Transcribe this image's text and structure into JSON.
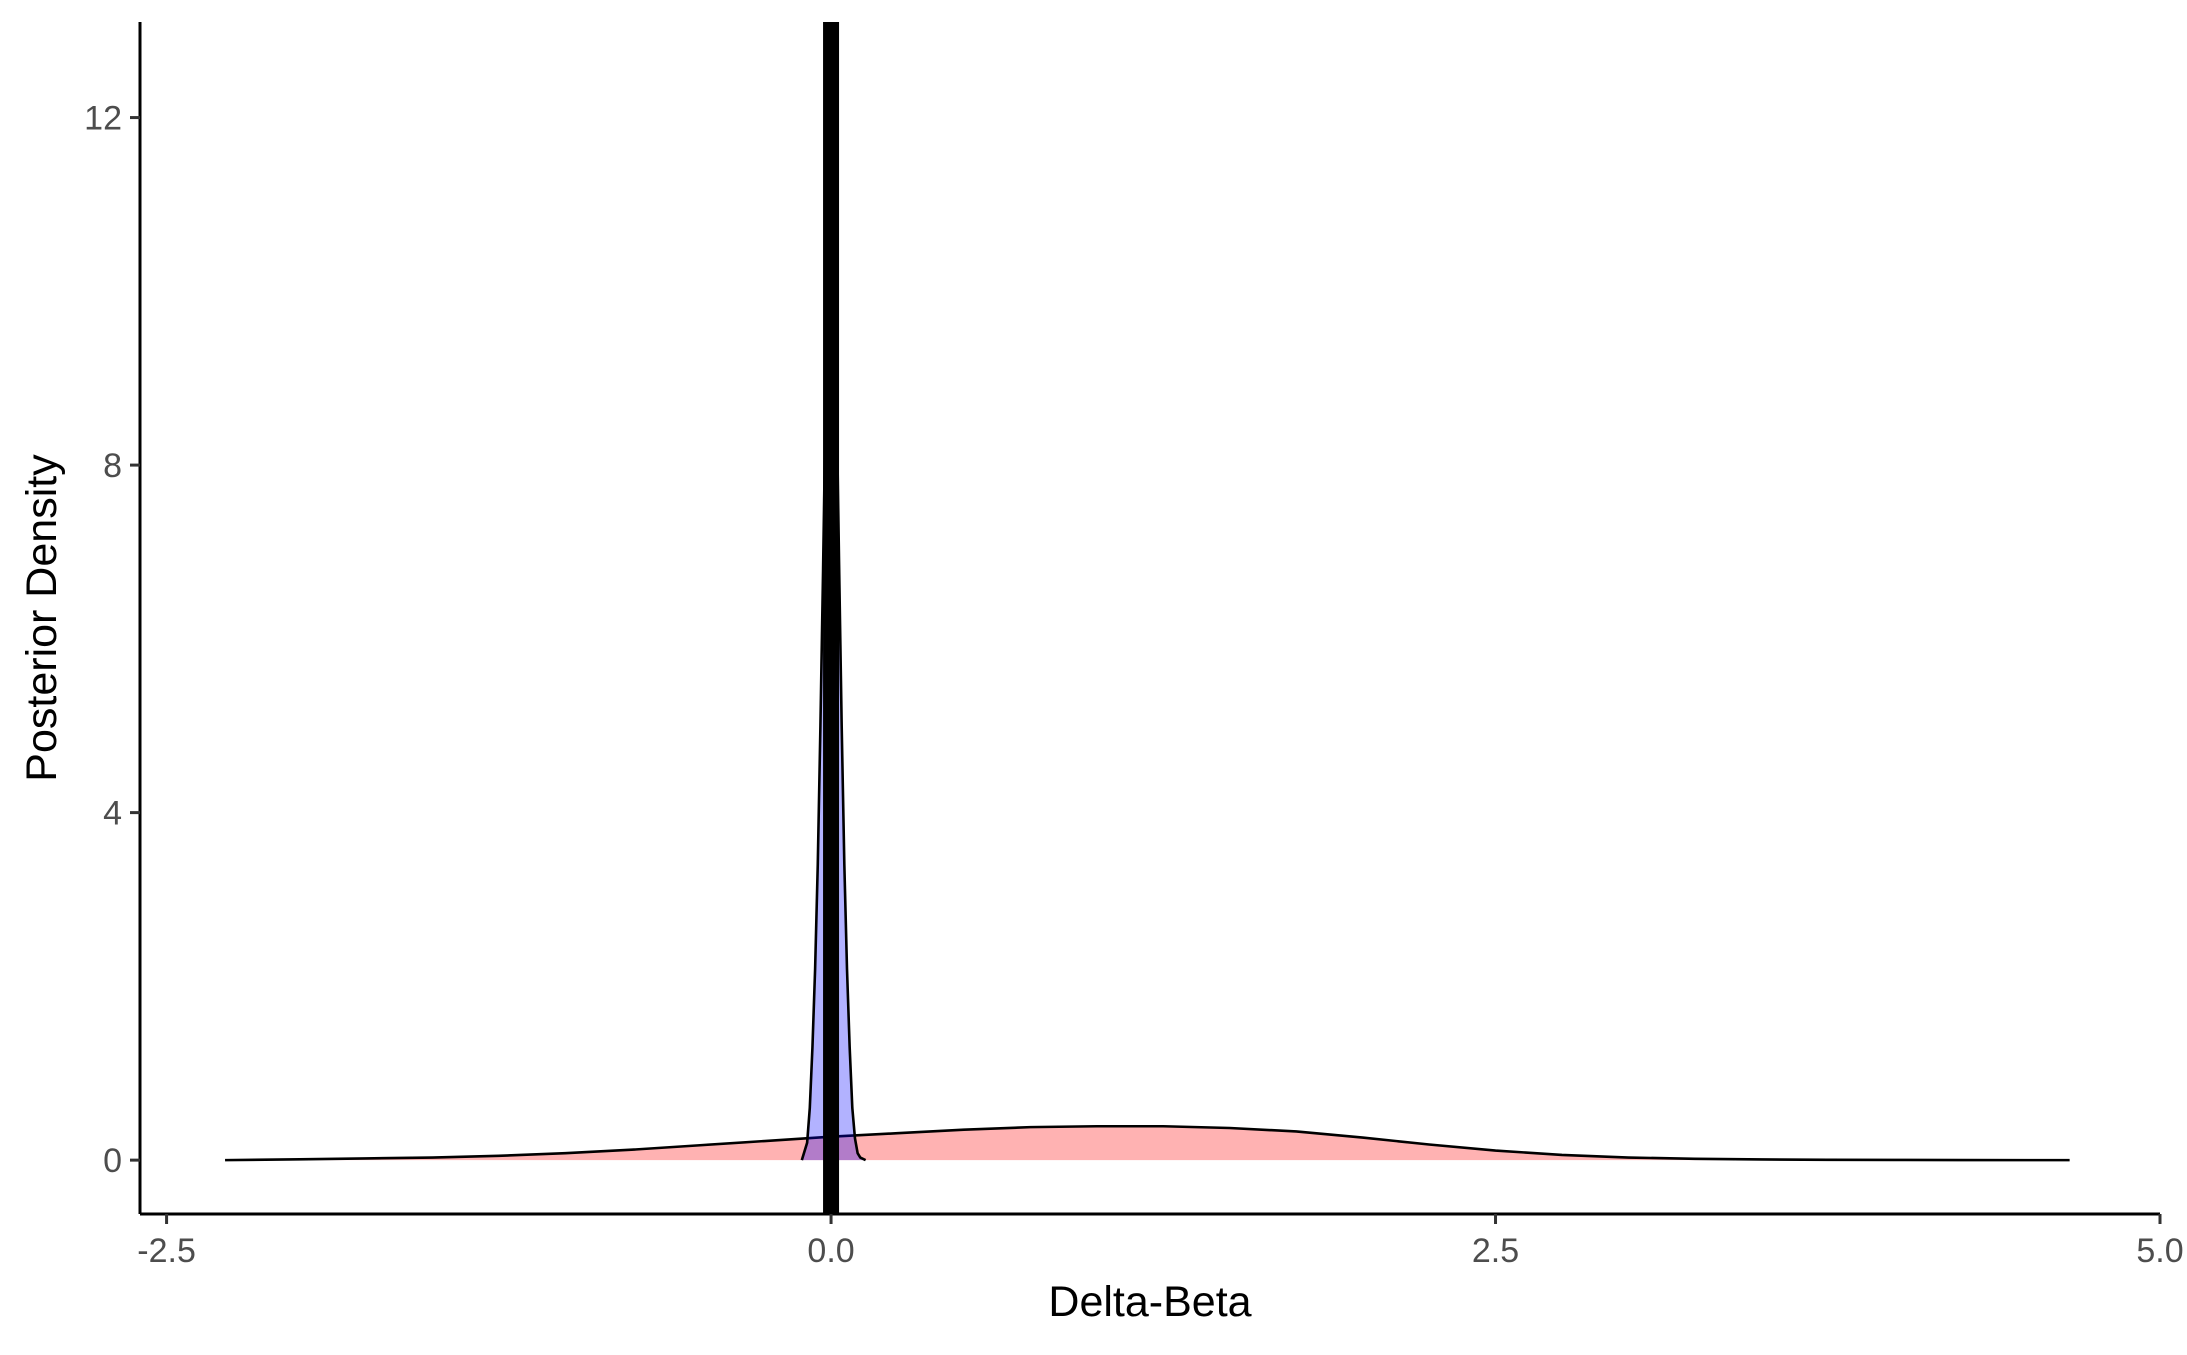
{
  "chart_data": {
    "type": "area",
    "title": "",
    "xlabel": "Delta-Beta",
    "ylabel": "Posterior Density",
    "xlim": [
      -2.6,
      5.0
    ],
    "ylim": [
      -0.62,
      13.1
    ],
    "x_ticks": [
      -2.5,
      0.0,
      2.5,
      5.0
    ],
    "x_tick_labels": [
      "-2.5",
      "0.0",
      "2.5",
      "5.0"
    ],
    "y_ticks": [
      0,
      4,
      8,
      12
    ],
    "y_tick_labels": [
      "0",
      "4",
      "8",
      "12"
    ],
    "grid": false,
    "legend": "none",
    "reference_line": {
      "x": 0.0,
      "color": "#000000"
    },
    "series": [
      {
        "color": "#ff0000",
        "fill_opacity": 0.3,
        "x": [
          -2.28,
          -2.0,
          -1.75,
          -1.5,
          -1.25,
          -1.0,
          -0.75,
          -0.5,
          -0.25,
          0.0,
          0.25,
          0.5,
          0.75,
          1.0,
          1.25,
          1.5,
          1.75,
          2.0,
          2.25,
          2.5,
          2.75,
          3.0,
          3.25,
          3.5,
          3.75,
          4.0,
          4.25,
          4.5,
          4.66
        ],
        "y": [
          0.0,
          0.01,
          0.02,
          0.03,
          0.05,
          0.08,
          0.12,
          0.17,
          0.22,
          0.27,
          0.31,
          0.35,
          0.38,
          0.39,
          0.39,
          0.37,
          0.33,
          0.26,
          0.18,
          0.11,
          0.06,
          0.03,
          0.015,
          0.008,
          0.004,
          0.002,
          0.001,
          0.0,
          0.0
        ]
      },
      {
        "color": "#0000ff",
        "fill_opacity": 0.3,
        "x": [
          -0.11,
          -0.09,
          -0.08,
          -0.07,
          -0.06,
          -0.05,
          -0.04,
          -0.03,
          -0.02,
          -0.01,
          0.0,
          0.01,
          0.02,
          0.03,
          0.04,
          0.05,
          0.06,
          0.07,
          0.08,
          0.09,
          0.1,
          0.11,
          0.13
        ],
        "y": [
          0.0,
          0.2,
          0.6,
          1.3,
          2.2,
          3.4,
          5.0,
          6.8,
          8.8,
          10.5,
          11.3,
          10.6,
          8.9,
          6.9,
          5.0,
          3.4,
          2.2,
          1.3,
          0.6,
          0.25,
          0.08,
          0.03,
          0.0
        ]
      }
    ]
  }
}
